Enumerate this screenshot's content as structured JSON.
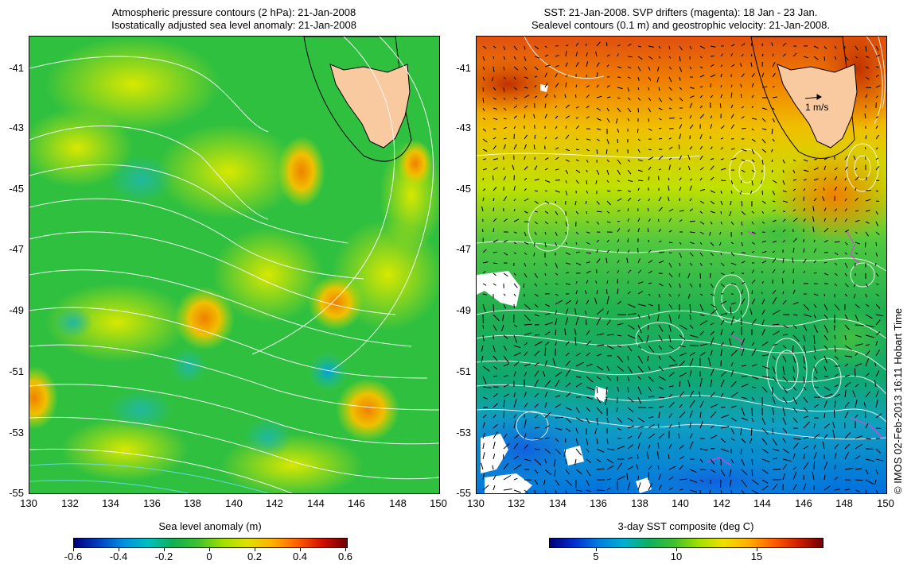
{
  "left": {
    "title_line1": "Atmospheric pressure contours (2 hPa): 21-Jan-2008",
    "title_line2": "Isostatically adjusted sea level anomaly: 21-Jan-2008",
    "colorbar_label": "Sea level anomaly (m)",
    "colorbar_ticks": [
      "-0.6",
      "-0.4",
      "-0.2",
      "0",
      "0.2",
      "0.4",
      "0.6"
    ]
  },
  "right": {
    "title_line1": "SST: 21-Jan-2008. SVP drifters (magenta): 18 Jan - 23 Jan.",
    "title_line2": "Sealevel contours (0.1 m) and geostrophic velocity: 21-Jan-2008.",
    "colorbar_label": "3-day SST composite (deg C)",
    "colorbar_ticks": [
      "5",
      "10",
      "15"
    ],
    "velocity_scale_label": "1 m/s"
  },
  "lat_ticks": [
    "-41",
    "-43",
    "-45",
    "-47",
    "-49",
    "-51",
    "-53",
    "-55"
  ],
  "lon_ticks": [
    "130",
    "132",
    "134",
    "136",
    "138",
    "140",
    "142",
    "144",
    "146",
    "148",
    "150"
  ],
  "copyright": "© IMOS 02-Feb-2013 16:11 Hobart Time",
  "colors": {
    "land": "#f9c9a0",
    "sla_scale": [
      "#00007a",
      "#0070e0",
      "#00c8c0",
      "#10b040",
      "#60d020",
      "#e0e000",
      "#ff9000",
      "#e02000",
      "#800000"
    ],
    "sst_scale": [
      "#00007a",
      "#0050e0",
      "#00b0d0",
      "#10b050",
      "#a0e000",
      "#ffd000",
      "#ff7000",
      "#d02000",
      "#700000"
    ]
  }
}
